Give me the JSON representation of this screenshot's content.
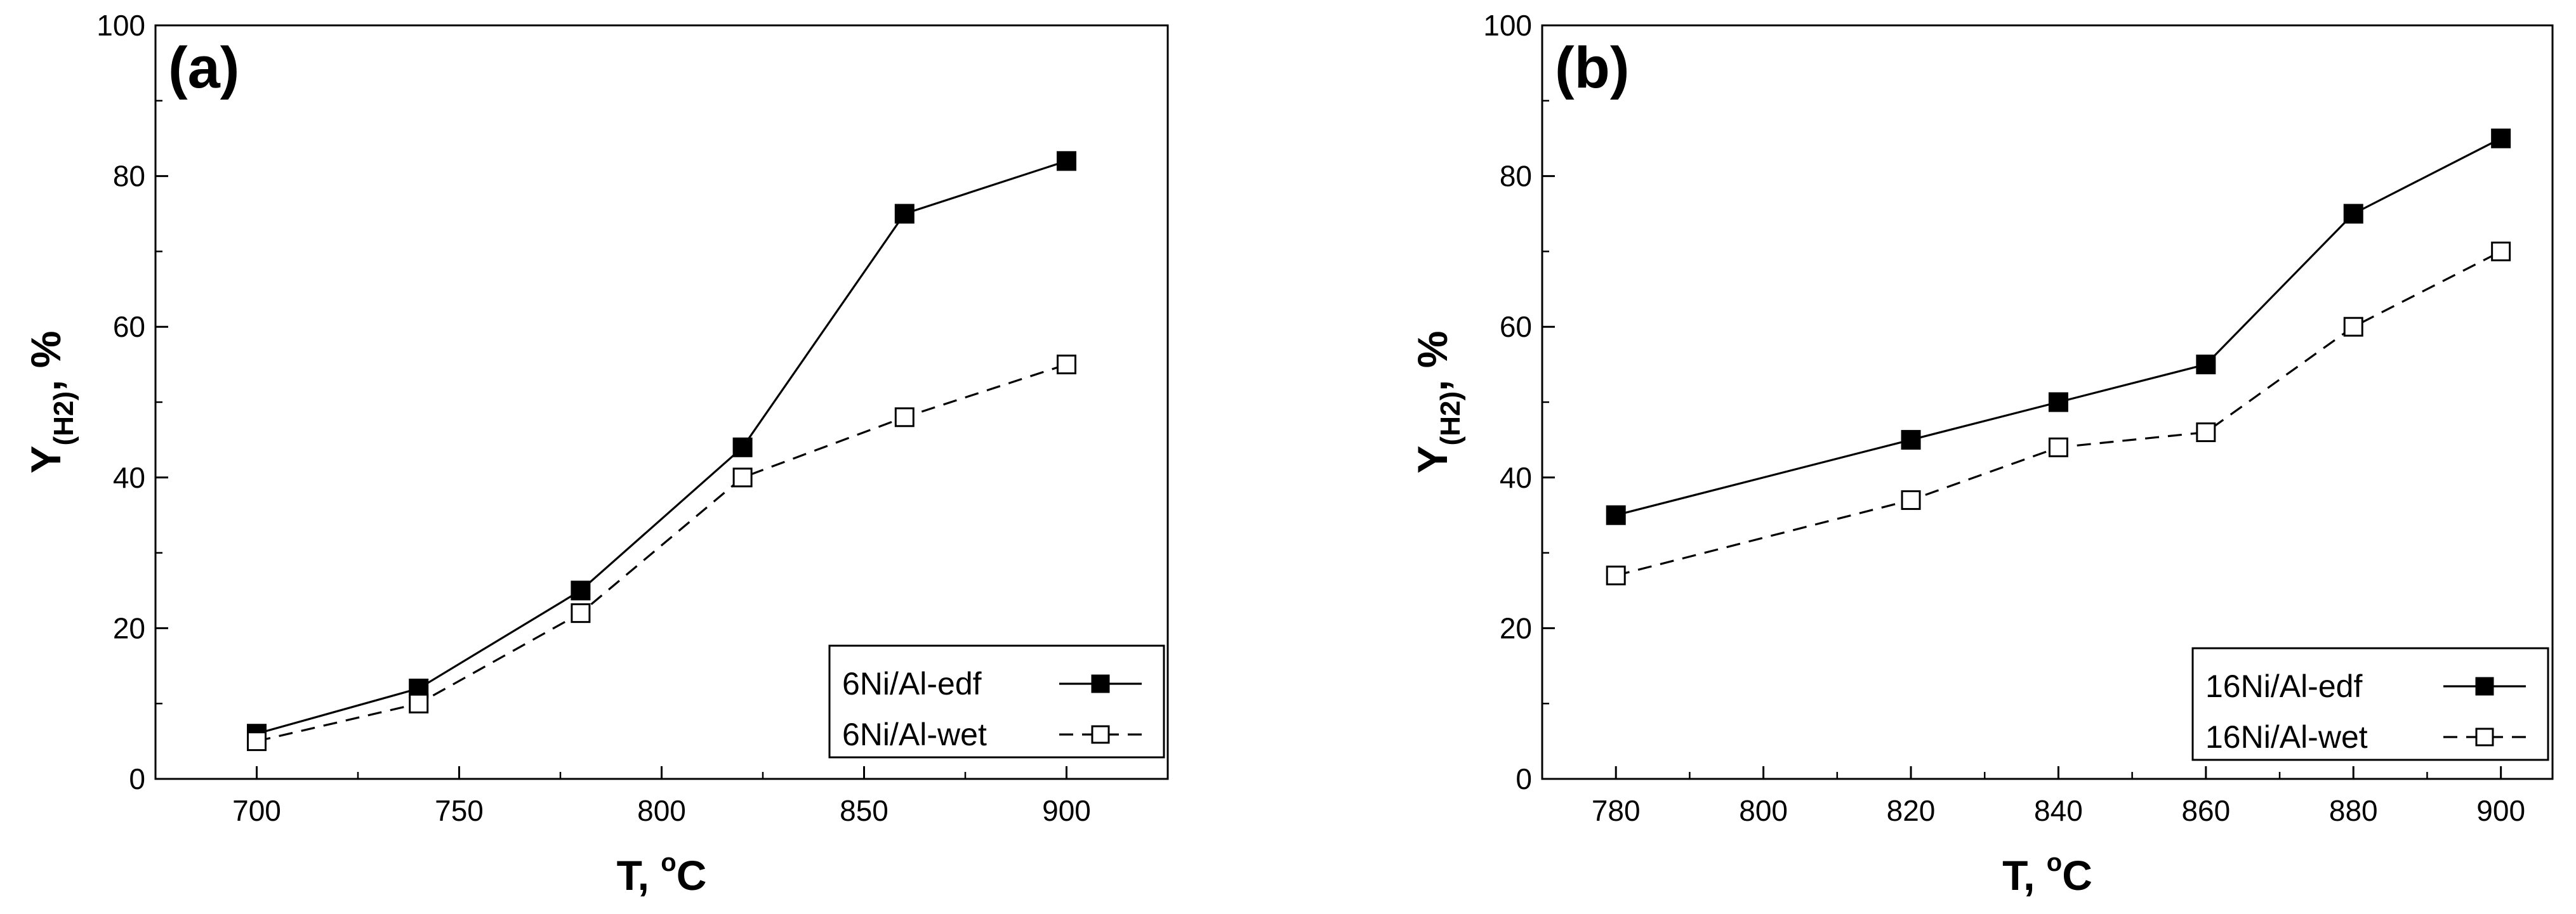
{
  "chart_data": [
    {
      "type": "line",
      "panel_label": "(a)",
      "xlabel": "T, ",
      "xlabel_superscript": "o",
      "xlabel_unit": "C",
      "ylabel_main": "Y",
      "ylabel_sub": "(H2)",
      "ylabel_suffix": ", %",
      "xlim": [
        675,
        925
      ],
      "ylim": [
        0,
        100
      ],
      "x_ticks": [
        700,
        750,
        800,
        850,
        900
      ],
      "x_tick_labels": [
        "700",
        "750",
        "800",
        "850",
        "900"
      ],
      "y_ticks": [
        0,
        20,
        40,
        60,
        80,
        100
      ],
      "y_tick_labels": [
        "0",
        "20",
        "40",
        "60",
        "80",
        "100"
      ],
      "legend_position": "bottom-right",
      "series": [
        {
          "name": "6Ni/Al-edf",
          "marker": "filled-square",
          "line": "solid",
          "x": [
            700,
            740,
            780,
            820,
            860,
            900
          ],
          "y": [
            6,
            12,
            25,
            44,
            75,
            82
          ]
        },
        {
          "name": "6Ni/Al-wet",
          "marker": "open-square",
          "line": "dashed",
          "x": [
            700,
            740,
            780,
            820,
            860,
            900
          ],
          "y": [
            5,
            10,
            22,
            40,
            48,
            55
          ]
        }
      ]
    },
    {
      "type": "line",
      "panel_label": "(b)",
      "xlabel": "T, ",
      "xlabel_superscript": "o",
      "xlabel_unit": "C",
      "ylabel_main": "Y",
      "ylabel_sub": "(H2)",
      "ylabel_suffix": ", %",
      "xlim": [
        770,
        907
      ],
      "ylim": [
        0,
        100
      ],
      "x_ticks": [
        780,
        800,
        820,
        840,
        860,
        880,
        900
      ],
      "x_tick_labels": [
        "780",
        "800",
        "820",
        "840",
        "860",
        "880",
        "900"
      ],
      "y_ticks": [
        0,
        20,
        40,
        60,
        80,
        100
      ],
      "y_tick_labels": [
        "0",
        "20",
        "40",
        "60",
        "80",
        "100"
      ],
      "legend_position": "bottom-right",
      "series": [
        {
          "name": "16Ni/Al-edf",
          "marker": "filled-square",
          "line": "solid",
          "x": [
            780,
            820,
            840,
            860,
            880,
            900
          ],
          "y": [
            35,
            45,
            50,
            55,
            75,
            85
          ]
        },
        {
          "name": "16Ni/Al-wet",
          "marker": "open-square",
          "line": "dashed",
          "x": [
            780,
            820,
            840,
            860,
            880,
            900
          ],
          "y": [
            27,
            37,
            44,
            46,
            60,
            70
          ]
        }
      ]
    }
  ]
}
